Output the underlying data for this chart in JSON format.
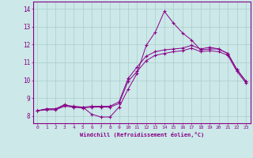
{
  "title": "",
  "xlabel": "Windchill (Refroidissement éolien,°C)",
  "bg_color": "#cce8e8",
  "line_color": "#880088",
  "grid_color": "#aacccc",
  "xlim": [
    -0.5,
    23.5
  ],
  "ylim": [
    7.6,
    14.4
  ],
  "xticks": [
    0,
    1,
    2,
    3,
    4,
    5,
    6,
    7,
    8,
    9,
    10,
    11,
    12,
    13,
    14,
    15,
    16,
    17,
    18,
    19,
    20,
    21,
    22,
    23
  ],
  "yticks": [
    8,
    9,
    10,
    11,
    12,
    13,
    14
  ],
  "series": [
    [
      8.3,
      8.4,
      8.4,
      8.65,
      8.5,
      8.5,
      8.1,
      7.95,
      7.95,
      8.5,
      9.5,
      10.4,
      11.95,
      12.7,
      13.85,
      13.2,
      12.65,
      12.25,
      11.7,
      11.75,
      11.75,
      11.5,
      10.6,
      9.95
    ],
    [
      8.3,
      8.4,
      8.4,
      8.6,
      8.55,
      8.5,
      8.55,
      8.55,
      8.55,
      8.8,
      10.1,
      10.75,
      11.35,
      11.6,
      11.7,
      11.75,
      11.8,
      11.95,
      11.75,
      11.85,
      11.75,
      11.5,
      10.6,
      9.95
    ],
    [
      8.3,
      8.35,
      8.35,
      8.55,
      8.5,
      8.45,
      8.5,
      8.5,
      8.5,
      8.7,
      9.95,
      10.5,
      11.1,
      11.4,
      11.5,
      11.6,
      11.65,
      11.8,
      11.6,
      11.65,
      11.6,
      11.4,
      10.5,
      9.85
    ]
  ]
}
